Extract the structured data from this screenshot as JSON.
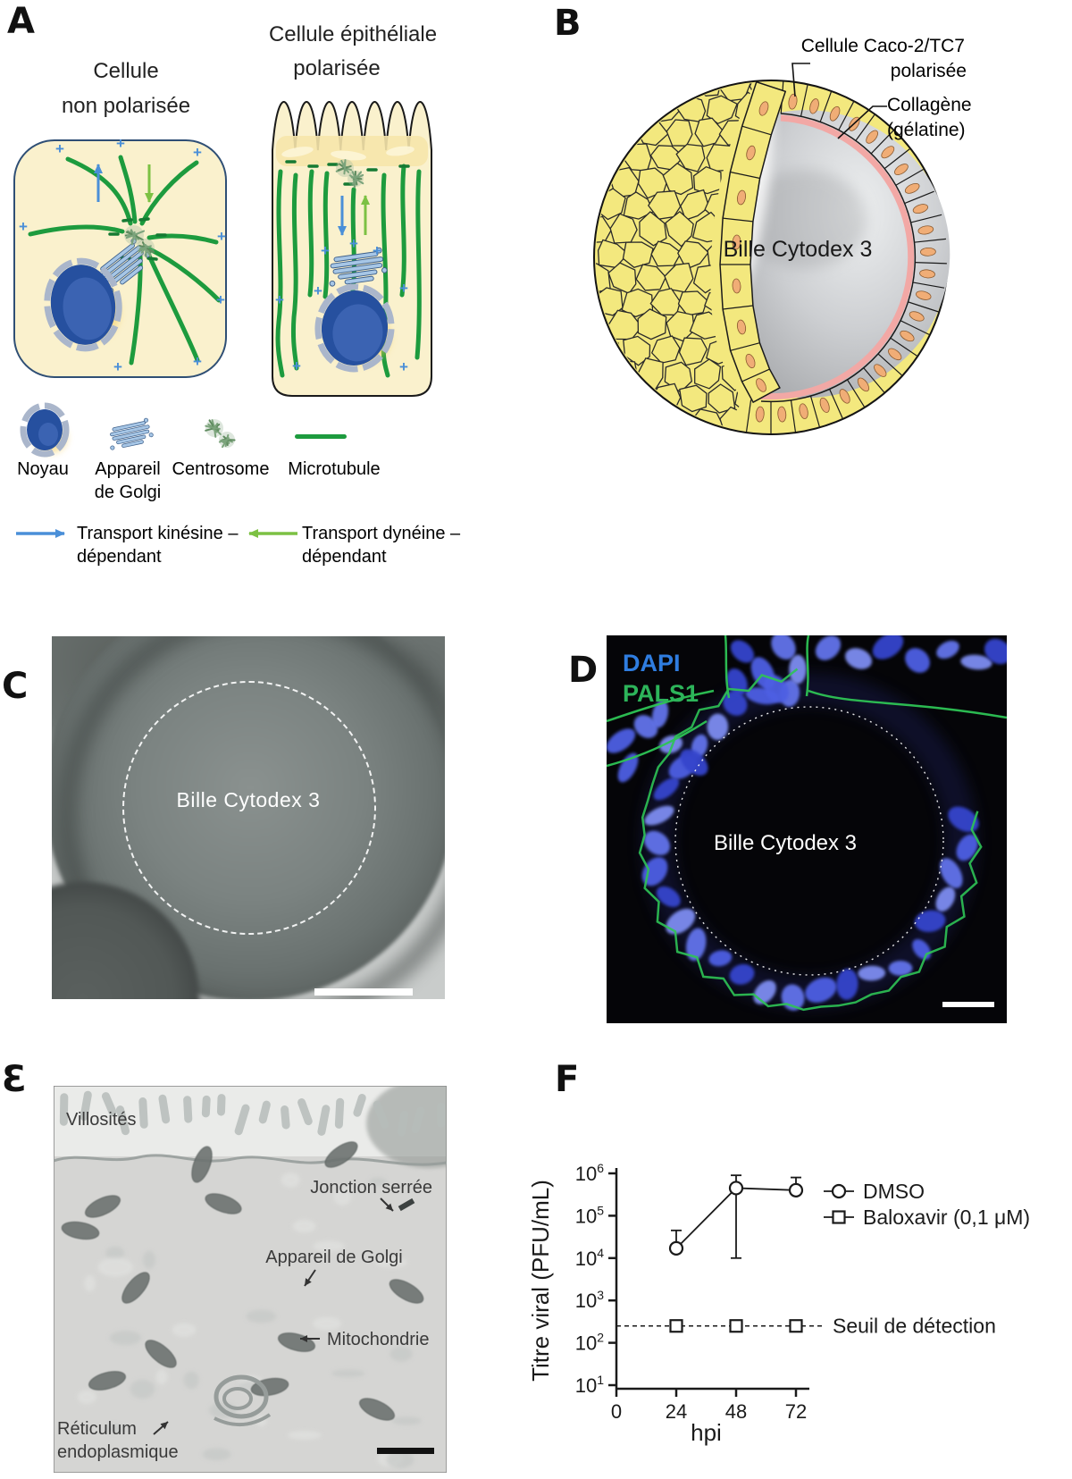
{
  "panelA": {
    "label": "A",
    "title_nonpolar_1": "Cellule",
    "title_nonpolar_2": "non polarisée",
    "title_polar_1": "Cellule épithéliale",
    "title_polar_2": "polarisée",
    "plus_sign": "+",
    "legend": {
      "noyau": "Noyau",
      "golgi_1": "Appareil",
      "golgi_2": "de Golgi",
      "centrosome": "Centrosome",
      "microtubule": "Microtubule",
      "kinesin_1": "Transport kinésine –",
      "kinesin_2": "dépendant",
      "dynein_1": "Transport dynéine –",
      "dynein_2": "dépendant"
    }
  },
  "panelB": {
    "label": "B",
    "caco_1": "Cellule Caco-2/TC7",
    "caco_2": "polarisée",
    "collagen_1": "Collagène",
    "collagen_2": "(gélatine)",
    "bead": "Bille Cytodex 3"
  },
  "panelC": {
    "label": "C",
    "bead": "Bille Cytodex 3"
  },
  "panelD": {
    "label": "D",
    "stain_dapi": "DAPI",
    "stain_pals1": "PALS1",
    "bead": "Bille Cytodex 3"
  },
  "panelE": {
    "label": "Ɛ",
    "villosites": "Villosités",
    "jonction": "Jonction serrée",
    "golgi": "Appareil de Golgi",
    "mitochondrie": "Mitochondrie",
    "reticulum_1": "Réticulum",
    "reticulum_2": "endoplasmique"
  },
  "panelF": {
    "label": "F"
  },
  "chart_data": {
    "type": "line",
    "title": "",
    "xlabel": "hpi",
    "ylabel": "Titre viral (PFU/mL)",
    "x_ticks": [
      0,
      24,
      48,
      72
    ],
    "y_scale": "log",
    "y_tick_exponents": [
      1,
      2,
      3,
      4,
      5,
      6
    ],
    "xlim": [
      0,
      72
    ],
    "ylim": [
      10,
      1000000
    ],
    "grid": false,
    "legend_position": "right",
    "series": [
      {
        "name": "DMSO",
        "marker": "circle",
        "x": [
          24,
          48,
          72
        ],
        "y": [
          17000,
          450000,
          400000
        ],
        "err_high": [
          45000,
          900000,
          800000
        ],
        "err_low": [
          null,
          10000,
          null
        ]
      },
      {
        "name": "Baloxavir (0,1 μM)",
        "marker": "square",
        "x": [
          24,
          48,
          72
        ],
        "y": [
          250,
          250,
          250
        ],
        "err_high": [
          null,
          null,
          null
        ],
        "err_low": [
          null,
          null,
          null
        ]
      }
    ],
    "threshold": {
      "value": 250,
      "label": "Seuil de détection",
      "style": "dashed"
    }
  },
  "colors": {
    "microtubule_green": "#1d9b3e",
    "kinesin_blue": "#4a8fd8",
    "dynein_green": "#7cc143",
    "cell_cream": "#faf1cd",
    "cellB_yellow": "#f3e87e",
    "nuclei_orange": "#f0ad76",
    "collagen_pink": "#f2a8a5",
    "dapi_blue": "#2f7de0",
    "pals1_green": "#2db45a"
  }
}
